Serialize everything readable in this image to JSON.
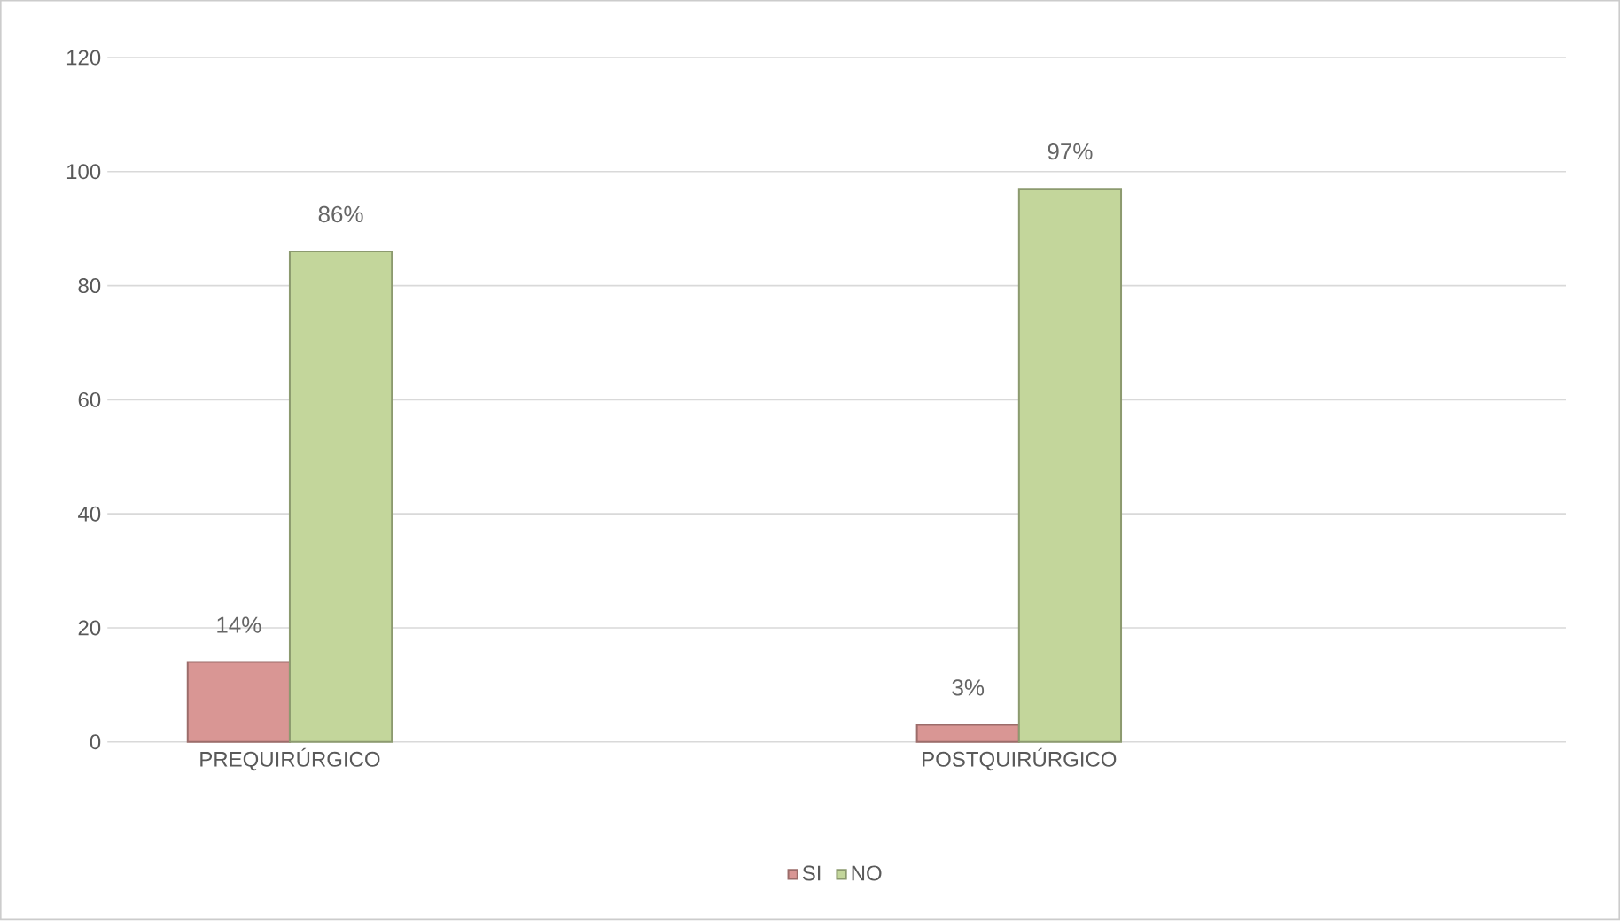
{
  "chart_data": {
    "type": "bar",
    "categories": [
      "PREQUIRÚRGICO",
      "POSTQUIRÚRGICO"
    ],
    "series": [
      {
        "name": "SI",
        "color": "#d99694",
        "values": [
          14,
          3
        ],
        "value_labels": [
          "14%",
          "3%"
        ]
      },
      {
        "name": "NO",
        "color": "#c3d69b",
        "values": [
          86,
          97
        ],
        "value_labels": [
          "86%",
          "97%"
        ]
      }
    ],
    "ylim": [
      0,
      120
    ],
    "yticks": [
      0,
      20,
      40,
      60,
      80,
      100,
      120
    ],
    "grid": "y",
    "legend": "bottom"
  }
}
